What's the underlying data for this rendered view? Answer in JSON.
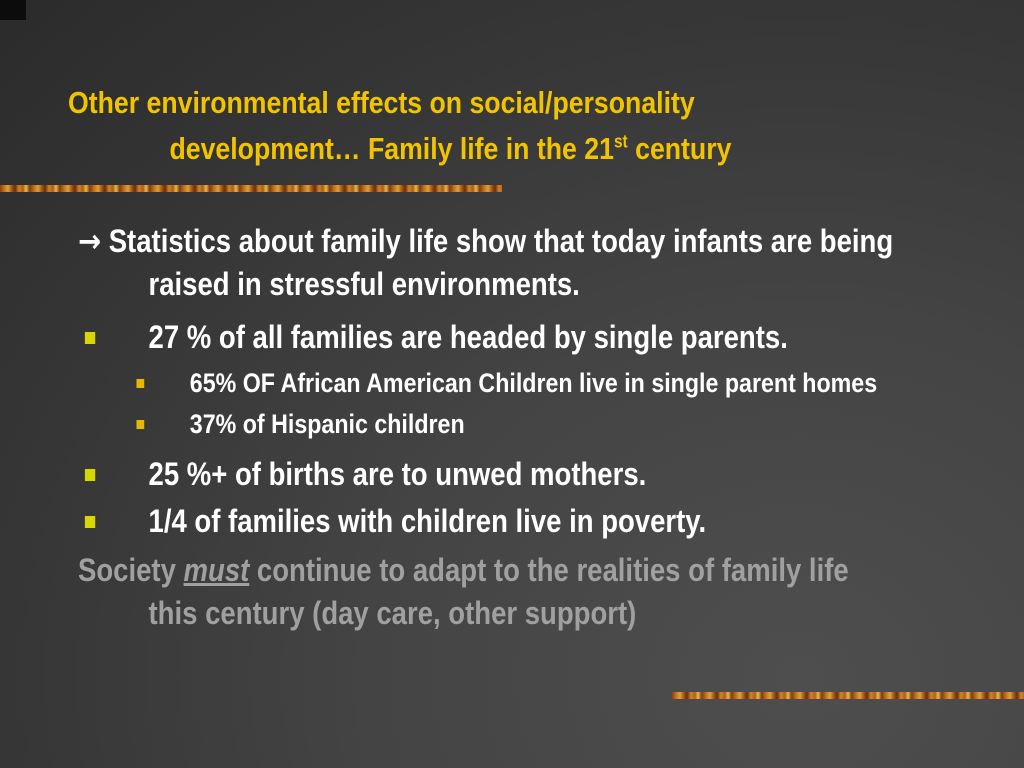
{
  "title": {
    "line1": "Other environmental effects on social/personality",
    "line2_prefix": "development… Family life in the 21",
    "superscript": "st",
    "line2_suffix": " century"
  },
  "content": {
    "arrow_symbol": "→",
    "intro": " Statistics about family life show that today infants are being raised in stressful environments.",
    "bullet1": "27 % of all families are headed by single parents.",
    "sub1": "65% OF African American Children live in single parent homes",
    "sub2": "37% of Hispanic children",
    "bullet2": "25 %+ of births are to unwed mothers.",
    "bullet3": "1/4 of families with children live in poverty.",
    "closing_prefix": "Society ",
    "closing_emphasis": "must",
    "closing_suffix": " continue to adapt to the realities of family life this century (day care, other support)"
  },
  "colors": {
    "title": "#f2c400",
    "body_text": "#ffffff",
    "closing_text": "#a0a0a0",
    "bullet_level1": "#d8d800",
    "bullet_level2": "#e6b800",
    "background": "#3a3a3a"
  }
}
